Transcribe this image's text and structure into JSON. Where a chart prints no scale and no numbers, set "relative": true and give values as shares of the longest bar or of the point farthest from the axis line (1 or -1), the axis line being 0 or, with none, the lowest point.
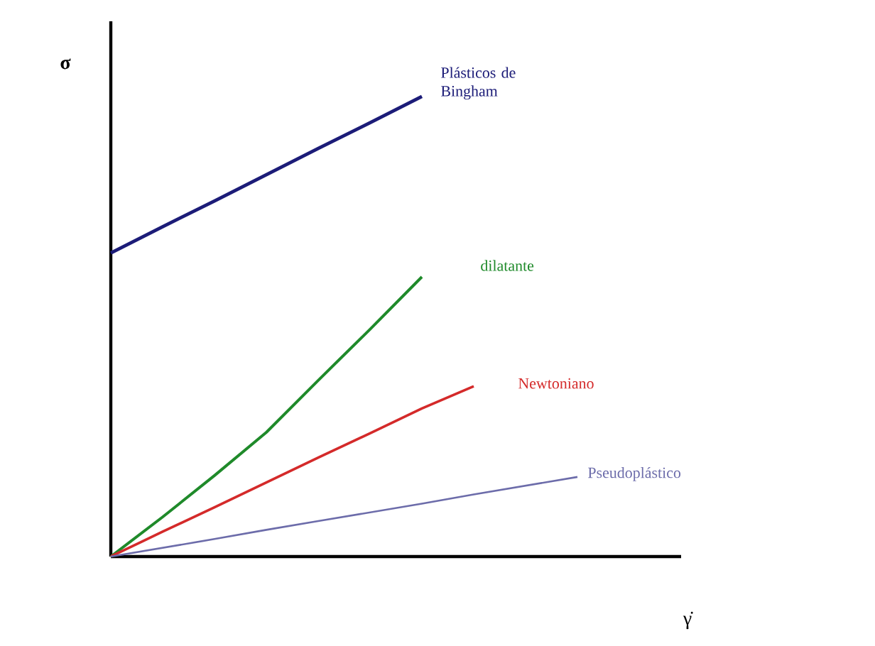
{
  "chart_data": {
    "type": "line",
    "relative": true,
    "marker": "none",
    "xlabel": "γ̇",
    "ylabel": "σ",
    "categories": [
      null,
      null,
      null,
      null,
      null,
      null,
      null,
      null,
      null,
      null,
      null,
      null
    ],
    "series": [
      {
        "name": "Plásticos de Bingham",
        "color": "#1c1c78",
        "values": [
          0.66,
          0.717,
          0.773,
          0.83,
          0.887,
          0.943,
          1,
          null,
          null,
          null,
          null,
          null
        ]
      },
      {
        "name": "dilatante",
        "color": "#1f8a2a",
        "values": [
          0,
          0.086,
          0.176,
          0.27,
          0.383,
          0.494,
          0.608,
          null,
          null,
          null,
          null,
          null
        ]
      },
      {
        "name": "Newtoniano",
        "color": "#d42a2a",
        "values": [
          0,
          0.054,
          0.107,
          0.161,
          0.215,
          0.268,
          0.322,
          0.37,
          null,
          null,
          null,
          null
        ]
      },
      {
        "name": "Pseudoplástico",
        "color": "#6c6caa",
        "values": [
          0,
          0.019,
          0.038,
          0.058,
          0.077,
          0.096,
          0.115,
          0.135,
          0.154,
          0.173,
          null,
          null
        ]
      }
    ]
  }
}
